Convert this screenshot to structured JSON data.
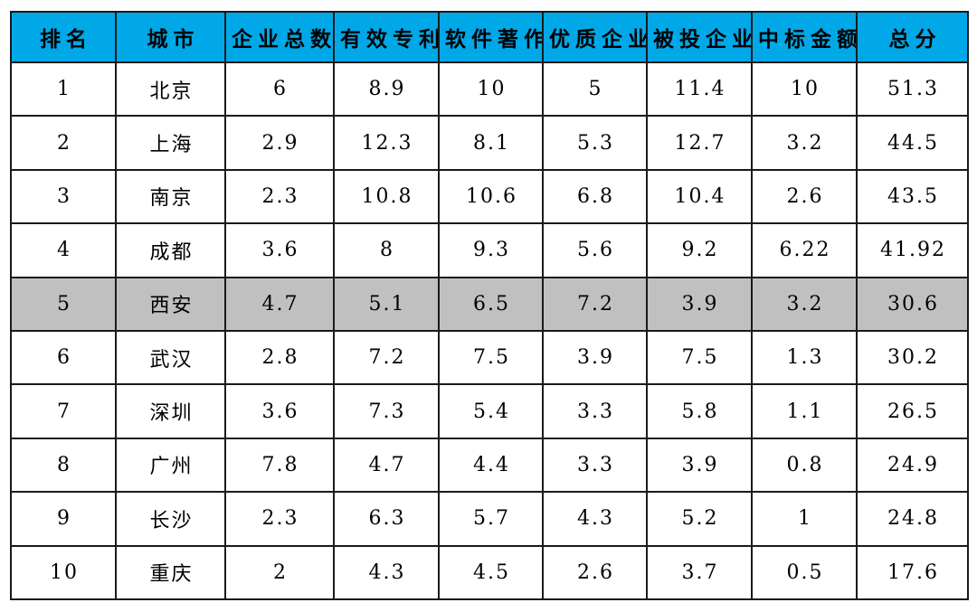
{
  "colors": {
    "header_bg": "#00a8e8",
    "highlight_row_bg": "#c0c0c0",
    "border": "#1a1a1a",
    "text": "#000000"
  },
  "chart_data": {
    "type": "table",
    "columns": [
      "排名",
      "城市",
      "企业总数",
      "有效专利",
      "软件著作",
      "优质企业",
      "被投企业",
      "中标金额",
      "总分"
    ],
    "rows": [
      [
        "1",
        "北京",
        "6",
        "8.9",
        "10",
        "5",
        "11.4",
        "10",
        "51.3"
      ],
      [
        "2",
        "上海",
        "2.9",
        "12.3",
        "8.1",
        "5.3",
        "12.7",
        "3.2",
        "44.5"
      ],
      [
        "3",
        "南京",
        "2.3",
        "10.8",
        "10.6",
        "6.8",
        "10.4",
        "2.6",
        "43.5"
      ],
      [
        "4",
        "成都",
        "3.6",
        "8",
        "9.3",
        "5.6",
        "9.2",
        "6.22",
        "41.92"
      ],
      [
        "5",
        "西安",
        "4.7",
        "5.1",
        "6.5",
        "7.2",
        "3.9",
        "3.2",
        "30.6"
      ],
      [
        "6",
        "武汉",
        "2.8",
        "7.2",
        "7.5",
        "3.9",
        "7.5",
        "1.3",
        "30.2"
      ],
      [
        "7",
        "深圳",
        "3.6",
        "7.3",
        "5.4",
        "3.3",
        "5.8",
        "1.1",
        "26.5"
      ],
      [
        "8",
        "广州",
        "7.8",
        "4.7",
        "4.4",
        "3.3",
        "3.9",
        "0.8",
        "24.9"
      ],
      [
        "9",
        "长沙",
        "2.3",
        "6.3",
        "5.7",
        "4.3",
        "5.2",
        "1",
        "24.8"
      ],
      [
        "10",
        "重庆",
        "2",
        "4.3",
        "4.5",
        "2.6",
        "3.7",
        "0.5",
        "17.6"
      ]
    ],
    "highlighted_row_index": 4,
    "header_bg": "#00a8e8",
    "highlight_bg": "#c0c0c0",
    "grid": true,
    "legend": "none",
    "title": ""
  }
}
